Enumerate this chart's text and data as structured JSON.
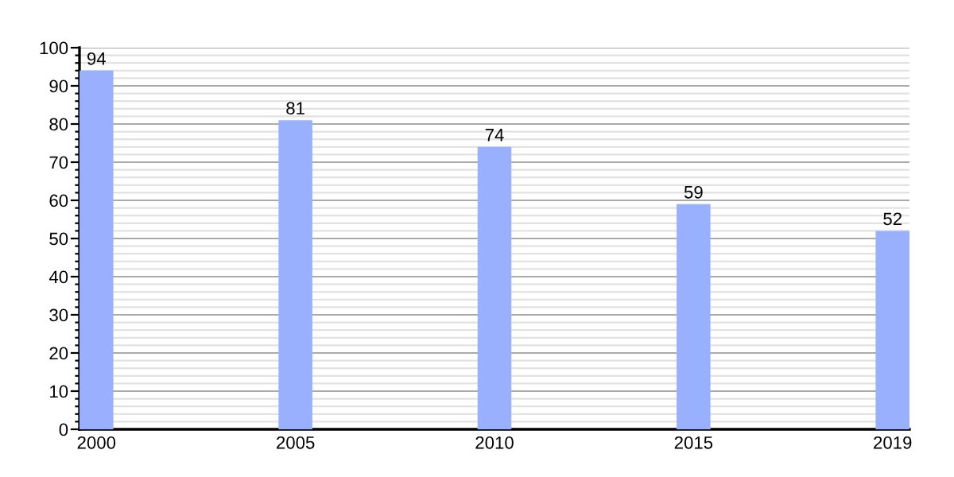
{
  "chart_data": {
    "type": "bar",
    "categories": [
      "2000",
      "2005",
      "2010",
      "2015",
      "2019"
    ],
    "values": [
      94,
      81,
      74,
      59,
      52
    ],
    "color": "#99b0ff",
    "data_labels": true,
    "ylim": [
      0,
      100
    ],
    "yticks": [
      0,
      {
        "value": 2,
        "label": null
      },
      {
        "value": 4,
        "label": null
      },
      {
        "value": 6,
        "label": null
      },
      {
        "value": 8,
        "label": null
      },
      10,
      {
        "value": 12,
        "label": null
      },
      {
        "value": 14,
        "label": null
      },
      {
        "value": 16,
        "label": null
      },
      {
        "value": 18,
        "label": null
      },
      20,
      {
        "value": 22,
        "label": null
      },
      {
        "value": 24,
        "label": null
      },
      {
        "value": 26,
        "label": null
      },
      {
        "value": 28,
        "label": null
      },
      30,
      {
        "value": 32,
        "label": null
      },
      {
        "value": 34,
        "label": null
      },
      {
        "value": 36,
        "label": null
      },
      {
        "value": 38,
        "label": null
      },
      40,
      {
        "value": 42,
        "label": null
      },
      {
        "value": 44,
        "label": null
      },
      {
        "value": 46,
        "label": null
      },
      {
        "value": 48,
        "label": null
      },
      50,
      {
        "value": 52,
        "label": null
      },
      {
        "value": 54,
        "label": null
      },
      {
        "value": 56,
        "label": null
      },
      {
        "value": 58,
        "label": null
      },
      60,
      {
        "value": 62,
        "label": null
      },
      {
        "value": 64,
        "label": null
      },
      {
        "value": 66,
        "label": null
      },
      {
        "value": 68,
        "label": null
      },
      70,
      {
        "value": 72,
        "label": null
      },
      {
        "value": 74,
        "label": null
      },
      {
        "value": 76,
        "label": null
      },
      {
        "value": 78,
        "label": null
      },
      80,
      {
        "value": 82,
        "label": null
      },
      {
        "value": 84,
        "label": null
      },
      {
        "value": 86,
        "label": null
      },
      {
        "value": 88,
        "label": null
      },
      90,
      {
        "value": 92,
        "label": null
      },
      {
        "value": 94,
        "label": null
      },
      {
        "value": 96,
        "label": null
      },
      {
        "value": 98,
        "label": null
      },
      100
    ],
    "grid": "y"
  }
}
